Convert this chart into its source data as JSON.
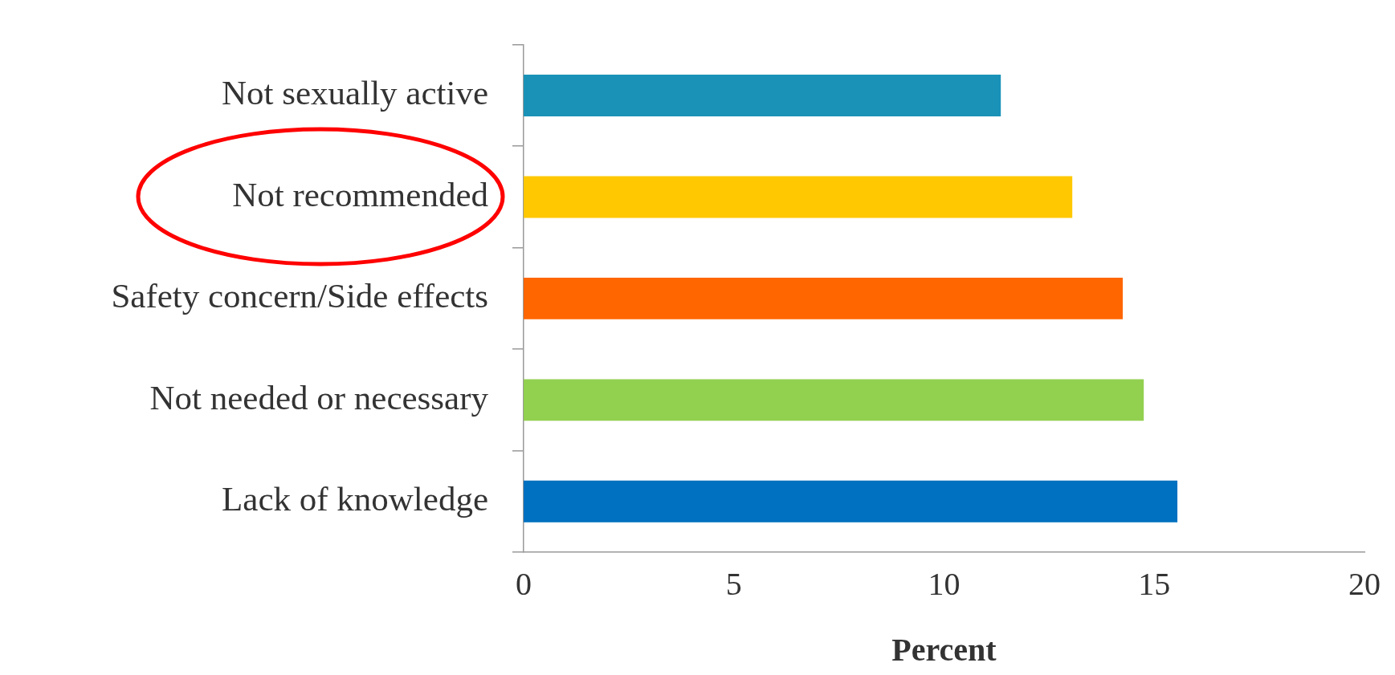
{
  "chart_data": {
    "type": "bar",
    "orientation": "horizontal",
    "xlabel": "Percent",
    "categories": [
      "Not sexually active",
      "Not recommended",
      "Safety concern/Side effects",
      "Not needed or necessary",
      "Lack of knowledge"
    ],
    "values": [
      11.35,
      13.05,
      14.25,
      14.75,
      15.55
    ],
    "colors": [
      "#1a92b8",
      "#ffc800",
      "#ff6600",
      "#92d050",
      "#0070c0"
    ],
    "xlim": [
      0,
      20
    ],
    "xticks": [
      0,
      5,
      10,
      15,
      20
    ],
    "grid": false,
    "legend": false
  }
}
